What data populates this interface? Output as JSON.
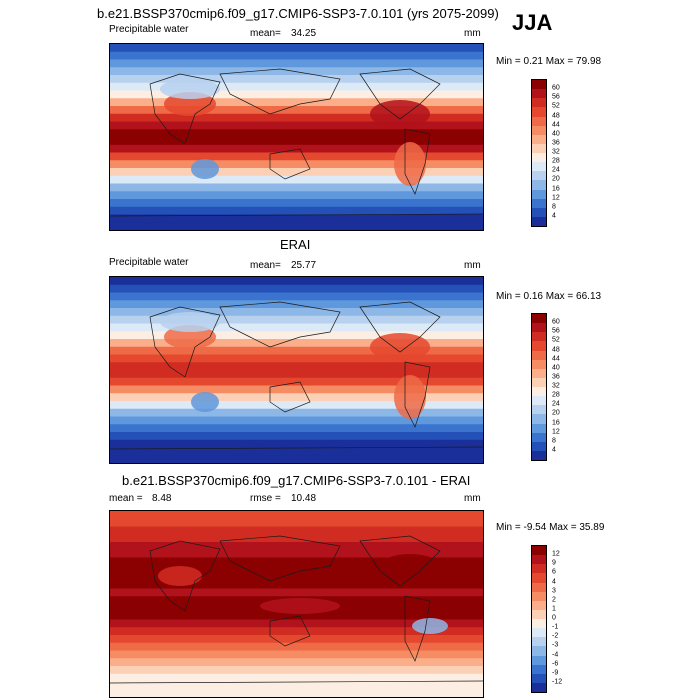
{
  "header": {
    "title": "b.e21.BSSP370cmip6.f09_g17.CMIP6-SSP3-7.0.101 (yrs 2075-2099)",
    "season": "JJA"
  },
  "panels": [
    {
      "title": "",
      "variable": "Precipitable water",
      "stat_label": "mean=",
      "stat_value": "34.25",
      "units": "mm",
      "minmax": "Min =   0.21 Max =  79.98",
      "colorbar_labels": [
        "60",
        "56",
        "52",
        "48",
        "44",
        "40",
        "36",
        "32",
        "28",
        "24",
        "20",
        "16",
        "12",
        "8",
        "4"
      ],
      "colorbar_colors": [
        "#8b0000",
        "#b2121b",
        "#d12c22",
        "#e4482e",
        "#ef6a46",
        "#f68c63",
        "#faae8a",
        "#fcd0b4",
        "#fdeee3",
        "#dce9f6",
        "#b7d1ee",
        "#8cb7e6",
        "#5f98dc",
        "#3a74cf",
        "#2451b8",
        "#1a2f99"
      ],
      "map_type": "model"
    },
    {
      "title": "ERAI",
      "variable": "Precipitable water",
      "stat_label": "mean=",
      "stat_value": "25.77",
      "units": "mm",
      "minmax": "Min =   0.16 Max =  66.13",
      "colorbar_labels": [
        "60",
        "56",
        "52",
        "48",
        "44",
        "40",
        "36",
        "32",
        "28",
        "24",
        "20",
        "16",
        "12",
        "8",
        "4"
      ],
      "colorbar_colors": [
        "#8b0000",
        "#b2121b",
        "#d12c22",
        "#e4482e",
        "#ef6a46",
        "#f68c63",
        "#faae8a",
        "#fcd0b4",
        "#fdeee3",
        "#dce9f6",
        "#b7d1ee",
        "#8cb7e6",
        "#5f98dc",
        "#3a74cf",
        "#2451b8",
        "#1a2f99"
      ],
      "map_type": "obs"
    },
    {
      "title": "b.e21.BSSP370cmip6.f09_g17.CMIP6-SSP3-7.0.101 - ERAI",
      "variable": "",
      "stat_label": "mean =",
      "stat_value": "8.48",
      "rmse_label": "rmse =",
      "rmse_value": "10.48",
      "units": "mm",
      "minmax": "Min =  -9.54 Max =  35.89",
      "colorbar_labels": [
        "12",
        "9",
        "6",
        "4",
        "3",
        "2",
        "1",
        "0",
        "-1",
        "-2",
        "-3",
        "-4",
        "-6",
        "-9",
        "-12"
      ],
      "colorbar_colors": [
        "#8b0000",
        "#b2121b",
        "#d12c22",
        "#e4482e",
        "#ef6a46",
        "#f68c63",
        "#faae8a",
        "#fcd0b4",
        "#fdeee3",
        "#dce9f6",
        "#b7d1ee",
        "#8cb7e6",
        "#5f98dc",
        "#3a74cf",
        "#2451b8",
        "#1a2f99"
      ],
      "map_type": "diff"
    }
  ]
}
